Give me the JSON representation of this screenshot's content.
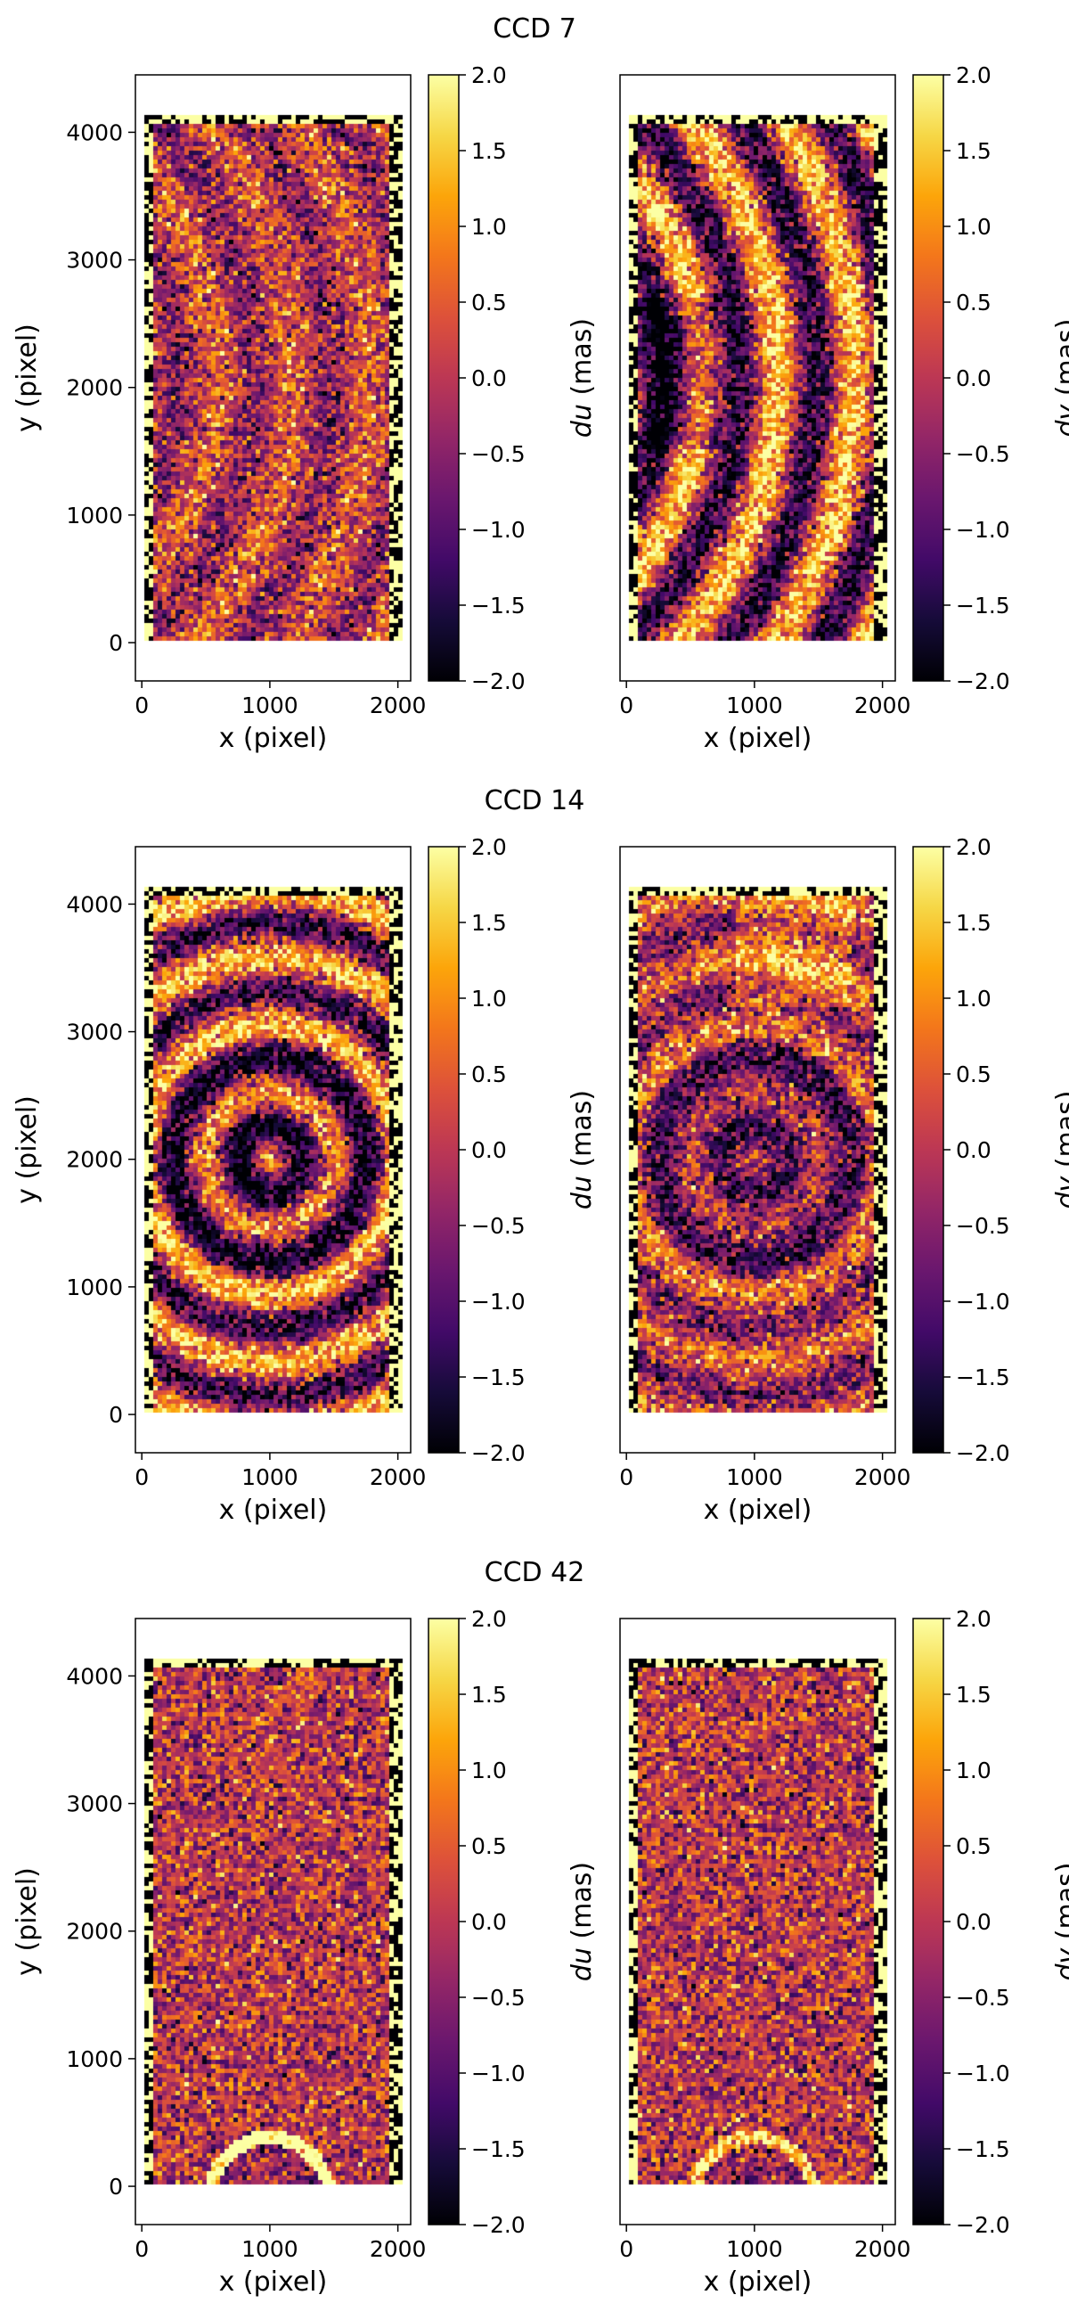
{
  "chart_data": {
    "type": "heatmap",
    "colormap": "inferno",
    "panels": [
      {
        "title": "CCD 7",
        "plots": [
          {
            "component": "du",
            "xlabel": "x (pixel)",
            "ylabel": "y (pixel)",
            "cbar_label_var": "du",
            "cbar_label_unit": " (mas)",
            "pattern": "arcs-left-faint",
            "seed": 7
          },
          {
            "component": "dv",
            "xlabel": "x (pixel)",
            "ylabel": "",
            "cbar_label_var": "dv",
            "cbar_label_unit": " (mas)",
            "pattern": "arcs-left-strong",
            "seed": 17
          }
        ]
      },
      {
        "title": "CCD 14",
        "plots": [
          {
            "component": "du",
            "xlabel": "x (pixel)",
            "ylabel": "y (pixel)",
            "cbar_label_var": "du",
            "cbar_label_unit": " (mas)",
            "pattern": "rings-center",
            "seed": 14
          },
          {
            "component": "dv",
            "xlabel": "x (pixel)",
            "ylabel": "",
            "cbar_label_var": "dv",
            "cbar_label_unit": " (mas)",
            "pattern": "rings-center-faint",
            "seed": 24
          }
        ]
      },
      {
        "title": "CCD 42",
        "plots": [
          {
            "component": "du",
            "xlabel": "x (pixel)",
            "ylabel": "y (pixel)",
            "cbar_label_var": "du",
            "cbar_label_unit": " (mas)",
            "pattern": "arc-bottom",
            "seed": 42
          },
          {
            "component": "dv",
            "xlabel": "x (pixel)",
            "ylabel": "",
            "cbar_label_var": "dv",
            "cbar_label_unit": " (mas)",
            "pattern": "arc-bottom-faint",
            "seed": 52
          }
        ]
      }
    ],
    "x_ticks": [
      0,
      1000,
      2000
    ],
    "x_tick_labels": [
      "0",
      "1000",
      "2000"
    ],
    "y_ticks": [
      0,
      1000,
      2000,
      3000,
      4000
    ],
    "y_tick_labels": [
      "0",
      "1000",
      "2000",
      "3000",
      "4000"
    ],
    "xlim": [
      -50,
      2100
    ],
    "ylim": [
      -300,
      4450
    ],
    "data_extent": {
      "x": [
        20,
        2030
      ],
      "y": [
        20,
        4150
      ]
    },
    "colorbar_ticks": [
      2.0,
      1.5,
      1.0,
      0.5,
      0.0,
      -0.5,
      -1.0,
      -1.5,
      -2.0
    ],
    "colorbar_tick_labels": [
      "2.0",
      "1.5",
      "1.0",
      "0.5",
      "0.0",
      "−0.5",
      "−1.0",
      "−1.5",
      "−2.0"
    ],
    "colorbar_range": [
      -2.0,
      2.0
    ]
  }
}
